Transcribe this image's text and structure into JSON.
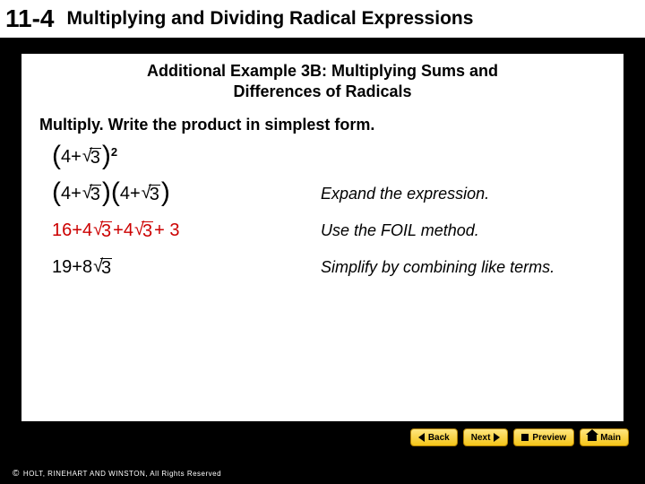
{
  "header": {
    "section_number": "11-4",
    "section_title": "Multiplying and Dividing Radical Expressions"
  },
  "content": {
    "example_title_line1": "Additional Example 3B: Multiplying Sums and",
    "example_title_line2": "Differences of Radicals",
    "instruction": "Multiply. Write the product in simplest form.",
    "rows": [
      {
        "expl": ""
      },
      {
        "expl": "Expand the expression."
      },
      {
        "expl": "Use the FOIL method."
      },
      {
        "expl": "Simplify by combining like terms."
      }
    ],
    "math": {
      "four": "4",
      "plus": " + ",
      "three": "3",
      "sixteen": "16",
      "four_coef": "4",
      "plus_3": " + 3",
      "nineteen": "19",
      "eight": "8",
      "exp2": "2"
    }
  },
  "nav": {
    "back": "Back",
    "next": "Next",
    "preview": "Preview",
    "main": "Main"
  },
  "copyright": "HOLT, RINEHART AND WINSTON, All Rights Reserved",
  "colors": {
    "background": "#000000",
    "panel": "#ffffff",
    "red": "#cc0000",
    "nav_gradient_top": "#ffe680",
    "nav_gradient_bottom": "#f5c518"
  }
}
